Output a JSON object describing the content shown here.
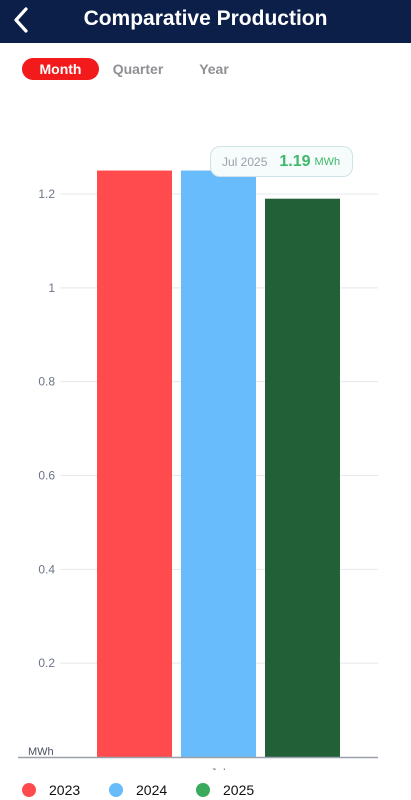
{
  "header": {
    "title": "Comparative Production",
    "back_icon": "chevron-left-icon"
  },
  "tabs": [
    {
      "label": "Month",
      "active": true
    },
    {
      "label": "Quarter",
      "active": false
    },
    {
      "label": "Year",
      "active": false
    }
  ],
  "tooltip": {
    "label": "Jul 2025",
    "value": "1.19",
    "unit": "MWh"
  },
  "chart_data": {
    "type": "bar",
    "categories": [
      "Jul"
    ],
    "series": [
      {
        "name": "2023",
        "values": [
          1.25
        ],
        "color": "#ff4b4e"
      },
      {
        "name": "2024",
        "values": [
          1.25
        ],
        "color": "#68bcfb"
      },
      {
        "name": "2025",
        "values": [
          1.19
        ],
        "color": "#226138"
      }
    ],
    "ylabel": "MWh",
    "ylim": [
      0,
      1.2
    ],
    "yticks": [
      "0.2",
      "0.4",
      "0.6",
      "0.8",
      "1",
      "1.2"
    ],
    "ytick_values": [
      0.2,
      0.4,
      0.6,
      0.8,
      1,
      1.2
    ],
    "grid": true,
    "legend_position": "bottom-left"
  },
  "legend": [
    {
      "label": "2023",
      "color": "#ff4b4e"
    },
    {
      "label": "2024",
      "color": "#68bcfb"
    },
    {
      "label": "2025",
      "color": "#3aaa5c"
    }
  ]
}
